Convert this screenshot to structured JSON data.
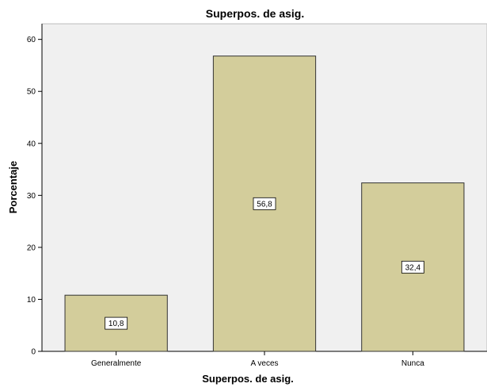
{
  "chart_data": {
    "type": "bar",
    "title": "Superpos. de asig.",
    "xlabel": "Superpos. de asig.",
    "ylabel": "Porcentaje",
    "categories": [
      "Generalmente",
      "A veces",
      "Nunca"
    ],
    "values": [
      10.8,
      56.8,
      32.4
    ],
    "data_labels": [
      "10,8",
      "56,8",
      "32,4"
    ],
    "ylim": [
      0,
      63
    ],
    "yticks": [
      0,
      10,
      20,
      30,
      40,
      50,
      60
    ],
    "grid": false,
    "legend": "none",
    "colors": {
      "bar_fill": "#d3cd9b",
      "bar_stroke": "#333333",
      "plot_background": "#f0f0f0",
      "label_box": "#ffffff"
    }
  }
}
